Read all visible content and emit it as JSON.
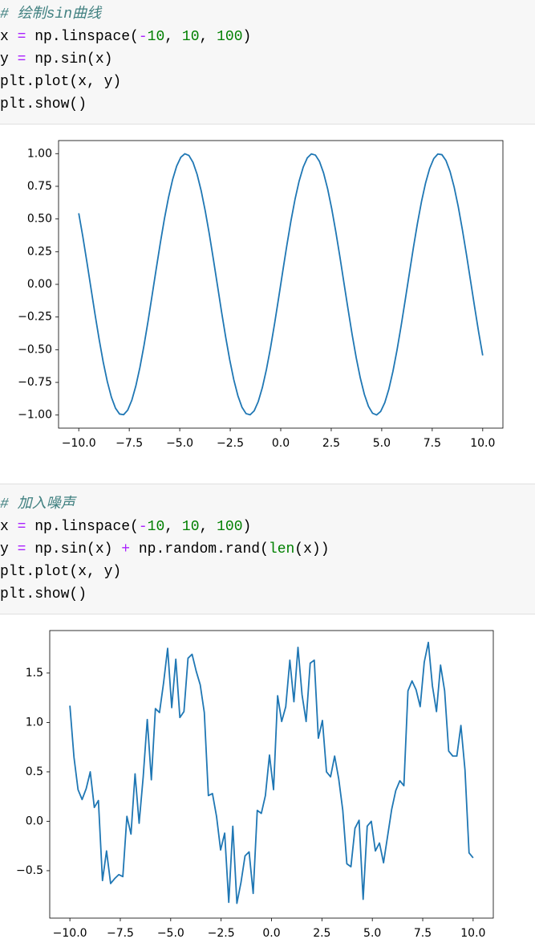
{
  "cells": [
    {
      "lines": [
        [
          {
            "text": "# 绘制sin曲线",
            "color": "#408080",
            "italic": true
          }
        ],
        [
          {
            "text": "x ",
            "color": "#000000"
          },
          {
            "text": "=",
            "color": "#aa22ff"
          },
          {
            "text": " np.linspace(",
            "color": "#000000"
          },
          {
            "text": "-",
            "color": "#aa22ff"
          },
          {
            "text": "10",
            "color": "#008000"
          },
          {
            "text": ", ",
            "color": "#000000"
          },
          {
            "text": "10",
            "color": "#008000"
          },
          {
            "text": ", ",
            "color": "#000000"
          },
          {
            "text": "100",
            "color": "#008000"
          },
          {
            "text": ")",
            "color": "#000000"
          }
        ],
        [
          {
            "text": "y ",
            "color": "#000000"
          },
          {
            "text": "=",
            "color": "#aa22ff"
          },
          {
            "text": " np.sin(x)",
            "color": "#000000"
          }
        ],
        [
          {
            "text": "plt.plot(x, y)",
            "color": "#000000"
          }
        ],
        [
          {
            "text": "plt.show()",
            "color": "#000000"
          }
        ]
      ]
    },
    {
      "lines": [
        [
          {
            "text": "# 加入噪声",
            "color": "#408080",
            "italic": true
          }
        ],
        [
          {
            "text": "x ",
            "color": "#000000"
          },
          {
            "text": "=",
            "color": "#aa22ff"
          },
          {
            "text": " np.linspace(",
            "color": "#000000"
          },
          {
            "text": "-",
            "color": "#aa22ff"
          },
          {
            "text": "10",
            "color": "#008000"
          },
          {
            "text": ", ",
            "color": "#000000"
          },
          {
            "text": "10",
            "color": "#008000"
          },
          {
            "text": ", ",
            "color": "#000000"
          },
          {
            "text": "100",
            "color": "#008000"
          },
          {
            "text": ")",
            "color": "#000000"
          }
        ],
        [
          {
            "text": "y ",
            "color": "#000000"
          },
          {
            "text": "=",
            "color": "#aa22ff"
          },
          {
            "text": " np.sin(x) ",
            "color": "#000000"
          },
          {
            "text": "+",
            "color": "#aa22ff"
          },
          {
            "text": " np.random.rand(",
            "color": "#000000"
          },
          {
            "text": "len",
            "color": "#008000"
          },
          {
            "text": "(x))",
            "color": "#000000"
          }
        ],
        [
          {
            "text": "plt.plot(x, y)",
            "color": "#000000"
          }
        ],
        [
          {
            "text": "plt.show()",
            "color": "#000000"
          }
        ]
      ]
    }
  ],
  "chart_data": [
    {
      "type": "line",
      "color": "#1f77b4",
      "x": [
        -10,
        -9.798,
        -9.596,
        -9.394,
        -9.192,
        -8.99,
        -8.788,
        -8.586,
        -8.384,
        -8.182,
        -7.98,
        -7.778,
        -7.576,
        -7.374,
        -7.172,
        -6.97,
        -6.768,
        -6.566,
        -6.364,
        -6.162,
        -5.96,
        -5.758,
        -5.556,
        -5.354,
        -5.152,
        -4.949,
        -4.747,
        -4.545,
        -4.343,
        -4.141,
        -3.939,
        -3.737,
        -3.535,
        -3.333,
        -3.131,
        -2.929,
        -2.727,
        -2.525,
        -2.323,
        -2.121,
        -1.919,
        -1.717,
        -1.515,
        -1.313,
        -1.111,
        -0.909,
        -0.707,
        -0.505,
        -0.303,
        -0.101,
        0.101,
        0.303,
        0.505,
        0.707,
        0.909,
        1.111,
        1.313,
        1.515,
        1.717,
        1.919,
        2.121,
        2.323,
        2.525,
        2.727,
        2.929,
        3.131,
        3.333,
        3.535,
        3.737,
        3.939,
        4.141,
        4.343,
        4.545,
        4.747,
        4.949,
        5.152,
        5.354,
        5.556,
        5.758,
        5.96,
        6.162,
        6.364,
        6.566,
        6.768,
        6.97,
        7.172,
        7.374,
        7.576,
        7.778,
        7.98,
        8.182,
        8.384,
        8.586,
        8.788,
        8.99,
        9.192,
        9.394,
        9.596,
        9.798,
        10
      ],
      "values": [
        0.544,
        0.365,
        0.17,
        -0.031,
        -0.231,
        -0.421,
        -0.595,
        -0.744,
        -0.863,
        -0.947,
        -0.992,
        -0.997,
        -0.962,
        -0.887,
        -0.776,
        -0.634,
        -0.466,
        -0.279,
        -0.08,
        0.121,
        0.318,
        0.502,
        0.665,
        0.801,
        0.905,
        0.972,
        0.999,
        0.986,
        0.933,
        0.842,
        0.716,
        0.561,
        0.384,
        0.19,
        -0.01,
        -0.211,
        -0.402,
        -0.578,
        -0.73,
        -0.852,
        -0.94,
        -0.989,
        -0.998,
        -0.967,
        -0.896,
        -0.789,
        -0.65,
        -0.485,
        -0.299,
        -0.101,
        0.101,
        0.299,
        0.485,
        0.65,
        0.789,
        0.896,
        0.967,
        0.998,
        0.989,
        0.94,
        0.852,
        0.73,
        0.578,
        0.402,
        0.211,
        0.01,
        -0.19,
        -0.384,
        -0.561,
        -0.716,
        -0.842,
        -0.933,
        -0.986,
        -0.999,
        -0.972,
        -0.905,
        -0.801,
        -0.665,
        -0.502,
        -0.318,
        -0.121,
        0.08,
        0.279,
        0.466,
        0.634,
        0.776,
        0.887,
        0.962,
        0.997,
        0.992,
        0.947,
        0.863,
        0.744,
        0.595,
        0.421,
        0.231,
        0.031,
        -0.17,
        -0.365,
        -0.544
      ],
      "xlim": [
        -11,
        11
      ],
      "xticks": [
        {
          "value": -10,
          "label": "−10.0"
        },
        {
          "value": -7.5,
          "label": "−7.5"
        },
        {
          "value": -5,
          "label": "−5.0"
        },
        {
          "value": -2.5,
          "label": "−2.5"
        },
        {
          "value": 0,
          "label": "0.0"
        },
        2.5,
        {
          "value": 5,
          "label": "5.0"
        },
        7.5,
        {
          "value": 10,
          "label": "10.0"
        }
      ],
      "ylim": [
        -1.1,
        1.1
      ],
      "yticks": [
        {
          "value": -1,
          "label": "−1.00"
        },
        {
          "value": -0.75,
          "label": "−0.75"
        },
        {
          "value": -0.5,
          "label": "−0.50"
        },
        {
          "value": -0.25,
          "label": "−0.25"
        },
        {
          "value": 0,
          "label": "0.00"
        },
        0.25,
        {
          "value": 0.5,
          "label": "0.50"
        },
        0.75,
        {
          "value": 1,
          "label": "1.00"
        }
      ],
      "grid": false
    },
    {
      "type": "line",
      "color": "#1f77b4",
      "x": [
        -10,
        -9.798,
        -9.596,
        -9.394,
        -9.192,
        -8.99,
        -8.788,
        -8.586,
        -8.384,
        -8.182,
        -7.98,
        -7.778,
        -7.576,
        -7.374,
        -7.172,
        -6.97,
        -6.768,
        -6.566,
        -6.364,
        -6.162,
        -5.96,
        -5.758,
        -5.556,
        -5.354,
        -5.152,
        -4.949,
        -4.747,
        -4.545,
        -4.343,
        -4.141,
        -3.939,
        -3.737,
        -3.535,
        -3.333,
        -3.131,
        -2.929,
        -2.727,
        -2.525,
        -2.323,
        -2.121,
        -1.919,
        -1.717,
        -1.515,
        -1.313,
        -1.111,
        -0.909,
        -0.707,
        -0.505,
        -0.303,
        -0.101,
        0.101,
        0.303,
        0.505,
        0.707,
        0.909,
        1.111,
        1.313,
        1.515,
        1.717,
        1.919,
        2.121,
        2.323,
        2.525,
        2.727,
        2.929,
        3.131,
        3.333,
        3.535,
        3.737,
        3.939,
        4.141,
        4.343,
        4.545,
        4.747,
        4.949,
        5.152,
        5.354,
        5.556,
        5.758,
        5.96,
        6.162,
        6.364,
        6.566,
        6.768,
        6.97,
        7.172,
        7.374,
        7.576,
        7.778,
        7.98,
        8.182,
        8.384,
        8.586,
        8.788,
        8.99,
        9.192,
        9.394,
        9.596,
        9.798,
        10
      ],
      "values": [
        1.17,
        0.65,
        0.32,
        0.22,
        0.33,
        0.5,
        0.14,
        0.21,
        -0.6,
        -0.3,
        -0.63,
        -0.58,
        -0.54,
        -0.56,
        0.05,
        -0.13,
        0.48,
        -0.02,
        0.45,
        1.03,
        0.42,
        1.14,
        1.1,
        1.4,
        1.75,
        1.15,
        1.64,
        1.05,
        1.11,
        1.65,
        1.69,
        1.52,
        1.38,
        1.1,
        0.26,
        0.28,
        0.05,
        -0.29,
        -0.12,
        -0.82,
        -0.05,
        -0.83,
        -0.62,
        -0.35,
        -0.31,
        -0.73,
        0.11,
        0.08,
        0.26,
        0.67,
        0.32,
        1.27,
        1.01,
        1.16,
        1.63,
        1.21,
        1.76,
        1.28,
        1.01,
        1.6,
        1.63,
        0.84,
        1.02,
        0.5,
        0.45,
        0.66,
        0.43,
        0.11,
        -0.43,
        -0.46,
        -0.07,
        0.01,
        -0.79,
        -0.05,
        0,
        -0.3,
        -0.22,
        -0.42,
        -0.15,
        0.12,
        0.31,
        0.41,
        0.36,
        1.32,
        1.42,
        1.33,
        1.16,
        1.61,
        1.81,
        1.37,
        1.11,
        1.58,
        1.32,
        0.71,
        0.66,
        0.66,
        0.97,
        0.52,
        -0.32,
        -0.37
      ],
      "xlim": [
        -11,
        11
      ],
      "xticks": [
        {
          "value": -10,
          "label": "−10.0"
        },
        {
          "value": -7.5,
          "label": "−7.5"
        },
        {
          "value": -5,
          "label": "−5.0"
        },
        {
          "value": -2.5,
          "label": "−2.5"
        },
        {
          "value": 0,
          "label": "0.0"
        },
        2.5,
        {
          "value": 5,
          "label": "5.0"
        },
        7.5,
        {
          "value": 10,
          "label": "10.0"
        }
      ],
      "ylim": [
        -0.98,
        1.93
      ],
      "yticks": [
        {
          "value": -0.5,
          "label": "−0.5"
        },
        {
          "value": 0,
          "label": "0.0"
        },
        0.5,
        {
          "value": 1,
          "label": "1.0"
        },
        1.5
      ],
      "grid": false
    }
  ]
}
